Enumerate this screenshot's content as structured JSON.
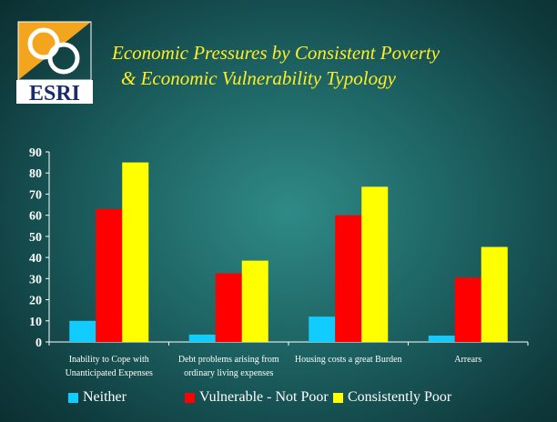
{
  "slide": {
    "title_line1": "Economic Pressures by Consistent Poverty",
    "title_line2": "& Economic Vulnerability  Typology",
    "logo_text": "ESRI"
  },
  "colors": {
    "title": "#ffee22",
    "axis": "#ffffff",
    "neither": "#11ccff",
    "vulnerable": "#ff0000",
    "consistently_poor": "#ffff00"
  },
  "chart_data": {
    "type": "bar",
    "title": "",
    "xlabel": "",
    "ylabel": "",
    "ylim": [
      0,
      90
    ],
    "yticks": [
      0,
      10,
      20,
      30,
      40,
      50,
      60,
      70,
      80,
      90
    ],
    "grid": false,
    "legend_position": "bottom",
    "categories": [
      [
        "Inability to Cope with",
        "Unanticipated Expenses"
      ],
      [
        "Debt problems arising from",
        "ordinary living expenses"
      ],
      [
        "Housing costs a great Burden"
      ],
      [
        "Arrears"
      ]
    ],
    "series": [
      {
        "name": "Neither",
        "color": "#11ccff",
        "values": [
          10,
          3.5,
          12,
          3
        ]
      },
      {
        "name": "Vulnerable - Not Poor",
        "color": "#ff0000",
        "values": [
          63,
          32.5,
          60,
          30.5
        ]
      },
      {
        "name": "Consistently Poor",
        "color": "#ffff00",
        "values": [
          85,
          38.5,
          73.5,
          45
        ]
      }
    ]
  }
}
